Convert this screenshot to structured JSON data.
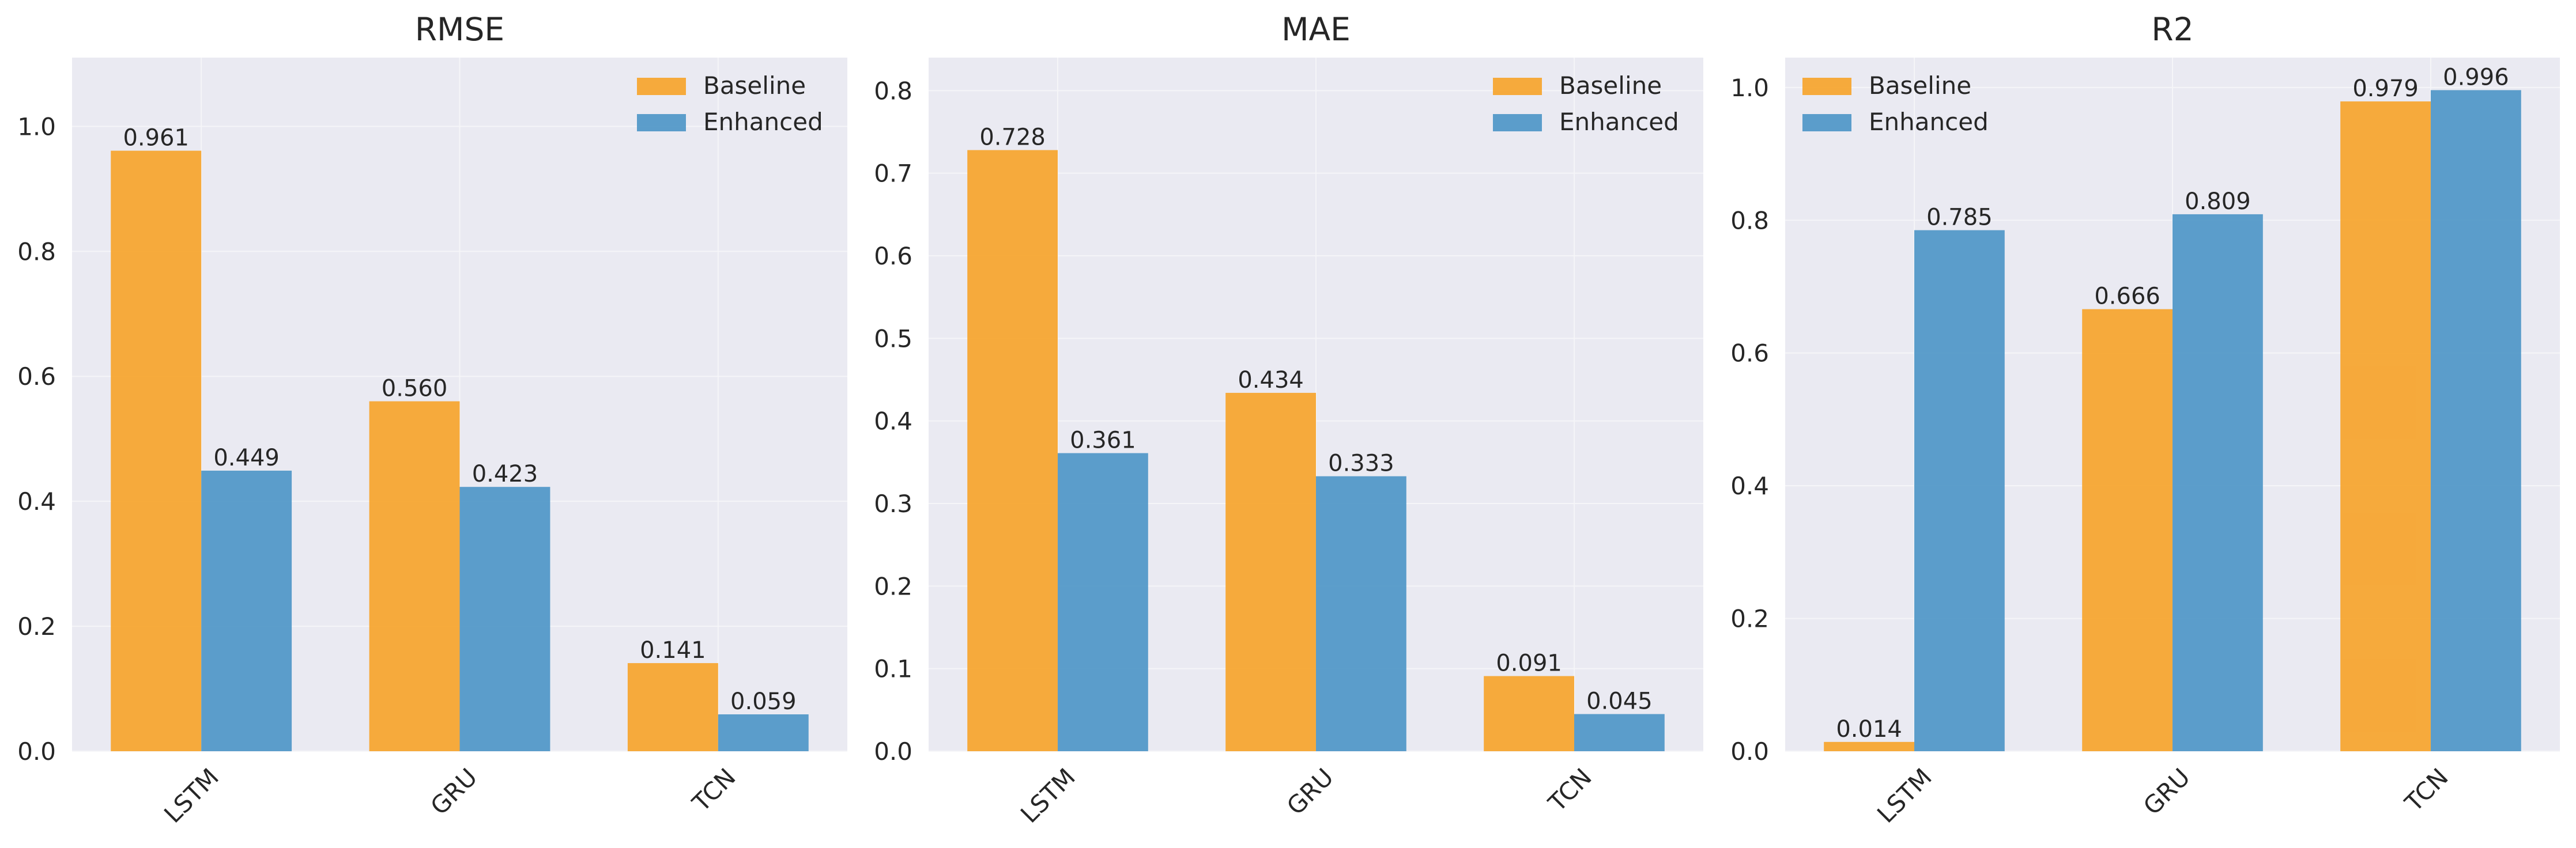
{
  "colors": {
    "baseline": "#f7a631",
    "enhanced": "#5399c8",
    "plot_bg": "#eaeaf2",
    "grid": "#f5f5f8",
    "text": "#262626"
  },
  "chart_data": [
    {
      "type": "bar",
      "title": "RMSE",
      "categories": [
        "LSTM",
        "GRU",
        "TCN"
      ],
      "series": [
        {
          "name": "Baseline",
          "values": [
            0.961,
            0.56,
            0.141
          ],
          "labels": [
            "0.961",
            "0.560",
            "0.141"
          ]
        },
        {
          "name": "Enhanced",
          "values": [
            0.449,
            0.423,
            0.059
          ],
          "labels": [
            "0.449",
            "0.423",
            "0.059"
          ]
        }
      ],
      "ylim": [
        0,
        1.11
      ],
      "yticks": [
        "0.0",
        "0.2",
        "0.4",
        "0.6",
        "0.8",
        "1.0"
      ],
      "legend": "upper-right",
      "grid": true,
      "xlabel": "",
      "ylabel": ""
    },
    {
      "type": "bar",
      "title": "MAE",
      "categories": [
        "LSTM",
        "GRU",
        "TCN"
      ],
      "series": [
        {
          "name": "Baseline",
          "values": [
            0.728,
            0.434,
            0.091
          ],
          "labels": [
            "0.728",
            "0.434",
            "0.091"
          ]
        },
        {
          "name": "Enhanced",
          "values": [
            0.361,
            0.333,
            0.045
          ],
          "labels": [
            "0.361",
            "0.333",
            "0.045"
          ]
        }
      ],
      "ylim": [
        0,
        0.84
      ],
      "yticks": [
        "0.0",
        "0.1",
        "0.2",
        "0.3",
        "0.4",
        "0.5",
        "0.6",
        "0.7",
        "0.8"
      ],
      "legend": "upper-right",
      "grid": true,
      "xlabel": "",
      "ylabel": ""
    },
    {
      "type": "bar",
      "title": "R2",
      "categories": [
        "LSTM",
        "GRU",
        "TCN"
      ],
      "series": [
        {
          "name": "Baseline",
          "values": [
            0.014,
            0.666,
            0.979
          ],
          "labels": [
            "0.014",
            "0.666",
            "0.979"
          ]
        },
        {
          "name": "Enhanced",
          "values": [
            0.785,
            0.809,
            0.996
          ],
          "labels": [
            "0.785",
            "0.809",
            "0.996"
          ]
        }
      ],
      "ylim": [
        0,
        1.045
      ],
      "yticks": [
        "0.0",
        "0.2",
        "0.4",
        "0.6",
        "0.8",
        "1.0"
      ],
      "legend": "upper-left",
      "grid": true,
      "xlabel": "",
      "ylabel": ""
    }
  ]
}
